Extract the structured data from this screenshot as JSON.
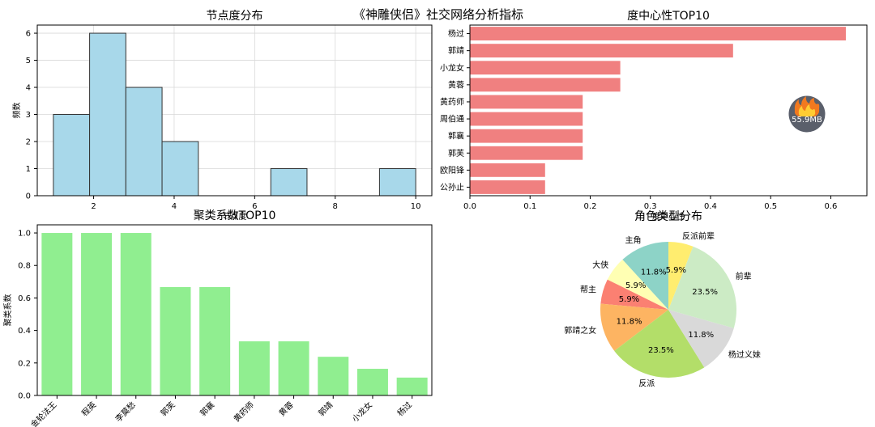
{
  "suptitle": "《神雕侠侣》社交网络分析指标",
  "chart_data": [
    {
      "type": "bar",
      "title": "节点度分布",
      "xlabel": "节点度",
      "ylabel": "频数",
      "bins": [
        [
          1,
          1.9
        ],
        [
          1.9,
          2.8
        ],
        [
          2.8,
          3.7
        ],
        [
          3.7,
          4.6
        ],
        [
          6.4,
          7.3
        ],
        [
          9.1,
          10
        ]
      ],
      "values": [
        3,
        6,
        4,
        2,
        1,
        1
      ],
      "xlim": [
        0.6,
        10.4
      ],
      "ylim": [
        0,
        6.3
      ],
      "xticks": [
        2,
        4,
        6,
        8,
        10
      ],
      "yticks": [
        0,
        1,
        2,
        3,
        4,
        5,
        6
      ],
      "color": "#a8d8ea",
      "grid": true
    },
    {
      "type": "bar",
      "orientation": "horizontal",
      "title": "度中心性TOP10",
      "categories": [
        "杨过",
        "郭靖",
        "小龙女",
        "黄蓉",
        "黄药师",
        "周伯通",
        "郭襄",
        "郭芙",
        "欧阳锋",
        "公孙止"
      ],
      "values": [
        0.625,
        0.4375,
        0.25,
        0.25,
        0.1875,
        0.1875,
        0.1875,
        0.1875,
        0.125,
        0.125
      ],
      "xlim": [
        0,
        0.66
      ],
      "xticks": [
        0.0,
        0.1,
        0.2,
        0.3,
        0.4,
        0.5,
        0.6
      ],
      "xticklabels": [
        "0.0",
        "0.1",
        "0.2",
        "0.3",
        "0.4",
        "0.5",
        "0.6"
      ],
      "xlabel": "度中心性",
      "color": "#f08080"
    },
    {
      "type": "bar",
      "title": "聚类系数TOP10",
      "ylabel": "聚类系数",
      "categories": [
        "金轮法王",
        "程英",
        "李莫愁",
        "郭芙",
        "郭襄",
        "黄药师",
        "黄蓉",
        "郭靖",
        "小龙女",
        "杨过"
      ],
      "values": [
        1.0,
        1.0,
        1.0,
        0.667,
        0.667,
        0.333,
        0.333,
        0.238,
        0.164,
        0.11
      ],
      "ylim": [
        0,
        1.05
      ],
      "yticks": [
        0.0,
        0.2,
        0.4,
        0.6,
        0.8,
        1.0
      ],
      "yticklabels": [
        "0.0",
        "0.2",
        "0.4",
        "0.6",
        "0.8",
        "1.0"
      ],
      "color": "#90ee90"
    },
    {
      "type": "pie",
      "title": "角色类型分布",
      "slices": [
        {
          "label": "主角",
          "value": 11.8,
          "pct": "11.8%",
          "color": "#8dd3c7"
        },
        {
          "label": "大侠",
          "value": 5.9,
          "pct": "5.9%",
          "color": "#ffffb3"
        },
        {
          "label": "帮主",
          "value": 5.9,
          "pct": "5.9%",
          "color": "#fb8072"
        },
        {
          "label": "郭靖之女",
          "value": 11.8,
          "pct": "11.8%",
          "color": "#fdb462"
        },
        {
          "label": "反派",
          "value": 23.5,
          "pct": "23.5%",
          "color": "#b3de69"
        },
        {
          "label": "杨过义妹",
          "value": 11.8,
          "pct": "11.8%",
          "color": "#d9d9d9"
        },
        {
          "label": "前辈",
          "value": 23.5,
          "pct": "23.5%",
          "color": "#ccebc5"
        },
        {
          "label": "反派前辈",
          "value": 5.9,
          "pct": "5.9%",
          "color": "#ffed6f"
        }
      ]
    }
  ],
  "overlay": {
    "memory_label": "55.9MB",
    "icon": "flame-icon"
  }
}
